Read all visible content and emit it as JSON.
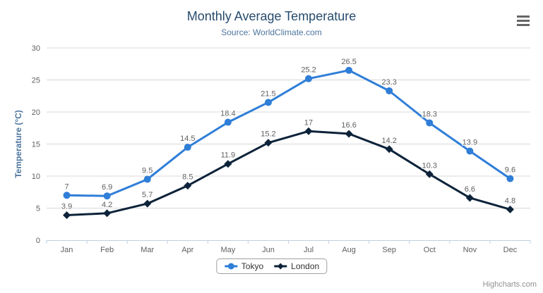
{
  "header": {
    "title": "Monthly Average Temperature",
    "subtitle": "Source: WorldClimate.com"
  },
  "export_menu": {
    "icon": "hamburger-menu"
  },
  "credits": {
    "label": "Highcharts.com"
  },
  "chart_data": {
    "type": "line",
    "title": "Monthly Average Temperature",
    "subtitle": "Source: WorldClimate.com",
    "categories": [
      "Jan",
      "Feb",
      "Mar",
      "Apr",
      "May",
      "Jun",
      "Jul",
      "Aug",
      "Sep",
      "Oct",
      "Nov",
      "Dec"
    ],
    "series": [
      {
        "name": "Tokyo",
        "color": "#2f7ed8",
        "marker": "circle",
        "values": [
          7,
          6.9,
          9.5,
          14.5,
          18.4,
          21.5,
          25.2,
          26.5,
          23.3,
          18.3,
          13.9,
          9.6
        ]
      },
      {
        "name": "London",
        "color": "#0d233a",
        "marker": "diamond",
        "values": [
          3.9,
          4.2,
          5.7,
          8.5,
          11.9,
          15.2,
          17,
          16.6,
          14.2,
          10.3,
          6.6,
          4.8
        ]
      }
    ],
    "xlabel": "",
    "ylabel": "Temperature (°C)",
    "ylim": [
      0,
      30
    ],
    "ytick_step": 5,
    "yticks": [
      0,
      5,
      10,
      15,
      20,
      25,
      30
    ],
    "grid": true,
    "data_labels": true,
    "legend_position": "bottom"
  },
  "colors": {
    "background": "#ffffff",
    "title": "#274b6d",
    "subtitle": "#4d759e",
    "axis_title": "#4d759e",
    "axis_labels": "#606060",
    "data_labels": "#606060",
    "grid_line": "#d8d8d8",
    "axis_line": "#c0d0e0",
    "legend_border": "#a0a0a0",
    "legend_text": "#333333",
    "credits": "#909090",
    "menu_icon": "#666666"
  }
}
